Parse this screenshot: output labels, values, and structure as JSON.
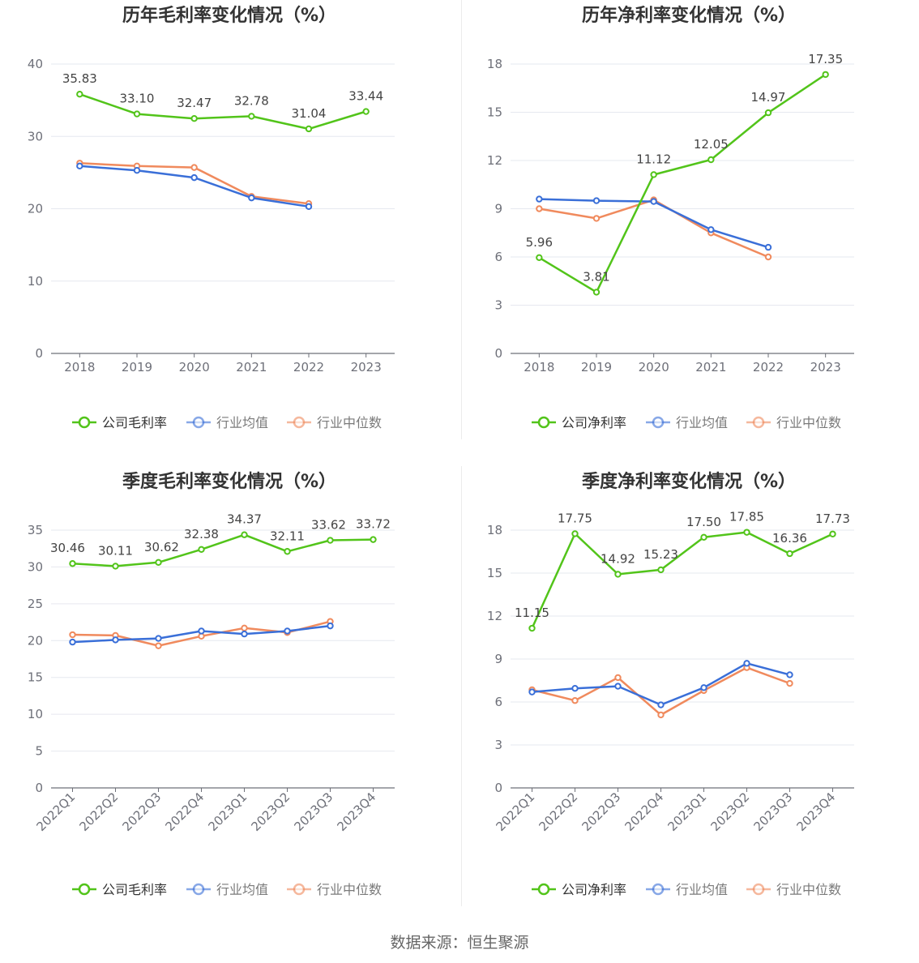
{
  "footer": {
    "source": "数据来源：恒生聚源"
  },
  "chart_data": [
    {
      "id": "annual-gross",
      "type": "line",
      "title": "历年毛利率变化情况（%）",
      "categories": [
        "2018",
        "2019",
        "2020",
        "2021",
        "2022",
        "2023"
      ],
      "ylim": [
        0,
        40
      ],
      "yticks": [
        0,
        10,
        20,
        30,
        40
      ],
      "grid": true,
      "legend_position": "bottom-center",
      "series": [
        {
          "name": "公司毛利率",
          "color": "#52c41a",
          "labels": true,
          "values": [
            35.83,
            33.1,
            32.47,
            32.78,
            31.04,
            33.44
          ]
        },
        {
          "name": "行业均值",
          "color": "#3a6fd8",
          "labels": false,
          "values": [
            25.9,
            25.3,
            24.3,
            21.5,
            20.3,
            null
          ]
        },
        {
          "name": "行业中位数",
          "color": "#f08a5d",
          "labels": false,
          "values": [
            26.3,
            25.9,
            25.7,
            21.7,
            20.7,
            null
          ]
        }
      ]
    },
    {
      "id": "annual-net",
      "type": "line",
      "title": "历年净利率变化情况（%）",
      "categories": [
        "2018",
        "2019",
        "2020",
        "2021",
        "2022",
        "2023"
      ],
      "ylim": [
        0,
        18
      ],
      "yticks": [
        0,
        3,
        6,
        9,
        12,
        15,
        18
      ],
      "grid": true,
      "legend_position": "bottom-center",
      "series": [
        {
          "name": "公司净利率",
          "color": "#52c41a",
          "labels": true,
          "values": [
            5.96,
            3.81,
            11.12,
            12.05,
            14.97,
            17.35
          ]
        },
        {
          "name": "行业均值",
          "color": "#3a6fd8",
          "labels": false,
          "values": [
            9.6,
            9.5,
            9.45,
            7.7,
            6.6,
            null
          ]
        },
        {
          "name": "行业中位数",
          "color": "#f08a5d",
          "labels": false,
          "values": [
            9.0,
            8.4,
            9.55,
            7.5,
            6.0,
            null
          ]
        }
      ]
    },
    {
      "id": "quarterly-gross",
      "type": "line",
      "title": "季度毛利率变化情况（%）",
      "categories": [
        "2022Q1",
        "2022Q2",
        "2022Q3",
        "2022Q4",
        "2023Q1",
        "2023Q2",
        "2023Q3",
        "2023Q4"
      ],
      "ylim": [
        0,
        35
      ],
      "yticks": [
        0,
        5,
        10,
        15,
        20,
        25,
        30,
        35
      ],
      "grid": true,
      "legend_position": "bottom-center",
      "series": [
        {
          "name": "公司毛利率",
          "color": "#52c41a",
          "labels": true,
          "values": [
            30.46,
            30.11,
            30.62,
            32.38,
            34.37,
            32.11,
            33.62,
            33.72
          ]
        },
        {
          "name": "行业均值",
          "color": "#3a6fd8",
          "labels": false,
          "values": [
            19.8,
            20.1,
            20.3,
            21.3,
            20.9,
            21.3,
            22.0,
            null
          ]
        },
        {
          "name": "行业中位数",
          "color": "#f08a5d",
          "labels": false,
          "values": [
            20.8,
            20.7,
            19.3,
            20.6,
            21.7,
            21.1,
            22.6,
            null
          ]
        }
      ]
    },
    {
      "id": "quarterly-net",
      "type": "line",
      "title": "季度净利率变化情况（%）",
      "categories": [
        "2022Q1",
        "2022Q2",
        "2022Q3",
        "2022Q4",
        "2023Q1",
        "2023Q2",
        "2023Q3",
        "2023Q4"
      ],
      "ylim": [
        0,
        18
      ],
      "yticks": [
        0,
        3,
        6,
        9,
        12,
        15,
        18
      ],
      "grid": true,
      "legend_position": "bottom-center",
      "series": [
        {
          "name": "公司净利率",
          "color": "#52c41a",
          "labels": true,
          "values": [
            11.15,
            17.75,
            14.92,
            15.23,
            17.5,
            17.85,
            16.36,
            17.73
          ]
        },
        {
          "name": "行业均值",
          "color": "#3a6fd8",
          "labels": false,
          "values": [
            6.7,
            6.95,
            7.1,
            5.8,
            7.0,
            8.7,
            7.9,
            null
          ]
        },
        {
          "name": "行业中位数",
          "color": "#f08a5d",
          "labels": false,
          "values": [
            6.85,
            6.1,
            7.7,
            5.1,
            6.8,
            8.4,
            7.3,
            null
          ]
        }
      ]
    }
  ]
}
